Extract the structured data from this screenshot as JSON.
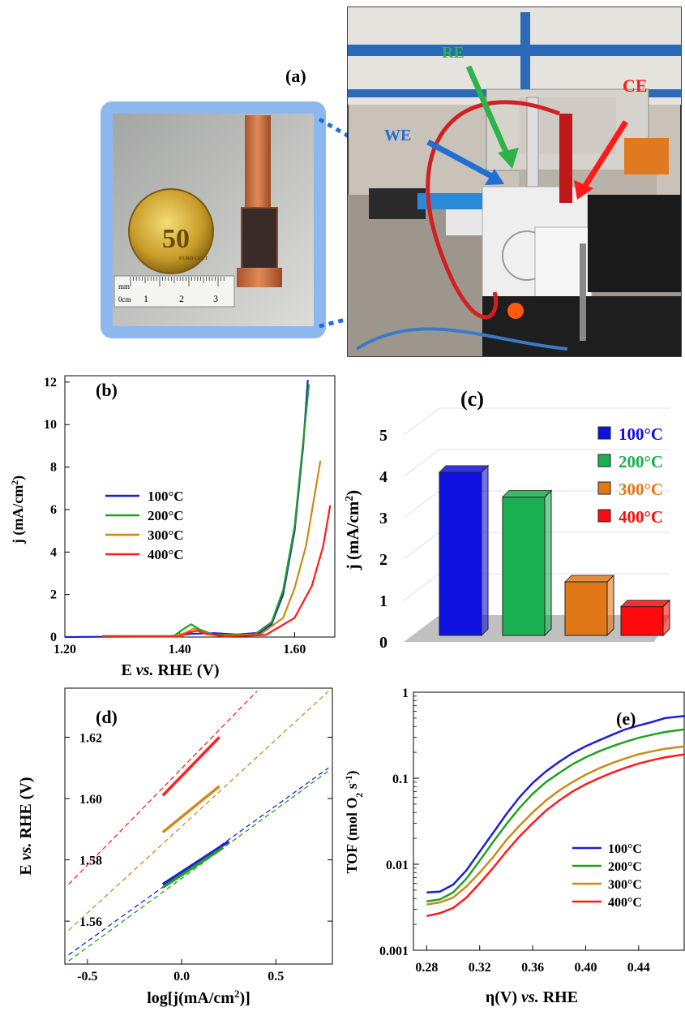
{
  "panel_a": {
    "label": "(a)",
    "ruler_labels": [
      "mm",
      "0cm",
      "1",
      "2",
      "3"
    ],
    "coin_text": "50",
    "coin_subtext": "EURO CENT",
    "arrows": [
      {
        "label": "RE",
        "color": "#2db34a"
      },
      {
        "label": "CE",
        "color": "#ff1a1a"
      },
      {
        "label": "WE",
        "color": "#1f6fd6"
      }
    ]
  },
  "chart_data": [
    {
      "panel": "(b)",
      "type": "line",
      "xlabel": "E vs. RHE (V)",
      "ylabel": "j (mA/cm2)",
      "xlim": [
        1.2,
        1.67
      ],
      "ylim": [
        0,
        12.3
      ],
      "xticks": [
        "1.20",
        "1.40",
        "1.60"
      ],
      "yticks": [
        "0",
        "2",
        "4",
        "6",
        "8",
        "10",
        "12"
      ],
      "legend_position": "middle-left",
      "series": [
        {
          "name": "100°C",
          "color": "#1f1fd6",
          "points": [
            [
              1.2,
              0
            ],
            [
              1.38,
              0.03
            ],
            [
              1.42,
              0.15
            ],
            [
              1.46,
              0.18
            ],
            [
              1.5,
              0.12
            ],
            [
              1.54,
              0.2
            ],
            [
              1.56,
              0.6
            ],
            [
              1.58,
              2.0
            ],
            [
              1.6,
              5.0
            ],
            [
              1.615,
              9.0
            ],
            [
              1.623,
              12.1
            ]
          ]
        },
        {
          "name": "200°C",
          "color": "#22a022",
          "points": [
            [
              1.265,
              0.05
            ],
            [
              1.39,
              0.05
            ],
            [
              1.405,
              0.35
            ],
            [
              1.42,
              0.6
            ],
            [
              1.435,
              0.35
            ],
            [
              1.46,
              0.1
            ],
            [
              1.53,
              0.12
            ],
            [
              1.56,
              0.7
            ],
            [
              1.58,
              2.2
            ],
            [
              1.6,
              5.2
            ],
            [
              1.615,
              9.2
            ],
            [
              1.625,
              11.9
            ]
          ]
        },
        {
          "name": "300°C",
          "color": "#cc8a14",
          "points": [
            [
              1.265,
              0.03
            ],
            [
              1.39,
              0.03
            ],
            [
              1.41,
              0.2
            ],
            [
              1.425,
              0.4
            ],
            [
              1.44,
              0.2
            ],
            [
              1.47,
              0.05
            ],
            [
              1.54,
              0.12
            ],
            [
              1.58,
              0.9
            ],
            [
              1.6,
              2.3
            ],
            [
              1.62,
              4.3
            ],
            [
              1.645,
              8.3
            ]
          ]
        },
        {
          "name": "400°C",
          "color": "#ff1a1a",
          "points": [
            [
              1.265,
              0.02
            ],
            [
              1.4,
              0.02
            ],
            [
              1.415,
              0.2
            ],
            [
              1.43,
              0.3
            ],
            [
              1.445,
              0.15
            ],
            [
              1.48,
              0.03
            ],
            [
              1.55,
              0.1
            ],
            [
              1.6,
              0.9
            ],
            [
              1.63,
              2.4
            ],
            [
              1.65,
              4.3
            ],
            [
              1.662,
              6.2
            ]
          ]
        }
      ]
    },
    {
      "panel": "(c)",
      "type": "bar",
      "ylabel": "j (mA/cm2)",
      "ylim": [
        0,
        5
      ],
      "yticks": [
        "0",
        "1",
        "2",
        "3",
        "4",
        "5"
      ],
      "categories": [
        "100°C",
        "200°C",
        "300°C",
        "400°C"
      ],
      "values": [
        4.1,
        3.5,
        1.45,
        0.85
      ],
      "colors": [
        "#1010e0",
        "#18b050",
        "#e07818",
        "#ff0a0a"
      ],
      "legend_position": "right"
    },
    {
      "panel": "(d)",
      "type": "line",
      "xlabel": "log[j(mA/cm2)]",
      "ylabel": "E vs. RHE (V)",
      "xlim": [
        -0.62,
        0.8
      ],
      "ylim": [
        1.546,
        1.636
      ],
      "xticks": [
        "-0.5",
        "0.0",
        "0.5"
      ],
      "yticks": [
        "1.56",
        "1.58",
        "1.60",
        "1.62"
      ],
      "series": [
        {
          "color": "#ff2020",
          "fit": [
            [
              -0.6,
              1.572
            ],
            [
              0.4,
              1.635
            ]
          ],
          "data": [
            [
              -0.1,
              1.601
            ],
            [
              0.2,
              1.62
            ]
          ]
        },
        {
          "color": "#d08a1c",
          "fit": [
            [
              -0.6,
              1.557
            ],
            [
              0.78,
              1.635
            ]
          ],
          "data": [
            [
              -0.1,
              1.589
            ],
            [
              0.2,
              1.604
            ]
          ]
        },
        {
          "color": "#1f1fd6",
          "fit": [
            [
              -0.6,
              1.549
            ],
            [
              0.78,
              1.61
            ]
          ],
          "data": [
            [
              -0.1,
              1.572
            ],
            [
              0.25,
              1.586
            ]
          ]
        },
        {
          "color": "#22a022",
          "fit": [
            [
              -0.6,
              1.547
            ],
            [
              0.78,
              1.609
            ]
          ],
          "data": [
            [
              -0.1,
              1.571
            ],
            [
              0.22,
              1.584
            ]
          ]
        }
      ]
    },
    {
      "panel": "(e)",
      "type": "line",
      "xlabel": "η(V) vs. RHE",
      "ylabel": "TOF (mol O2 s-1)",
      "yscale": "log",
      "xlim": [
        0.27,
        0.475
      ],
      "ylim": [
        0.001,
        1
      ],
      "xticks": [
        "0.28",
        "0.32",
        "0.36",
        "0.40",
        "0.44"
      ],
      "yticks": [
        "0.001",
        "0.01",
        "0.1",
        "1"
      ],
      "legend_position": "bottom-right",
      "series": [
        {
          "name": "100°C",
          "color": "#1f1fd6",
          "points": [
            [
              0.28,
              0.0047
            ],
            [
              0.29,
              0.0048
            ],
            [
              0.3,
              0.0058
            ],
            [
              0.31,
              0.0085
            ],
            [
              0.32,
              0.014
            ],
            [
              0.33,
              0.023
            ],
            [
              0.34,
              0.038
            ],
            [
              0.35,
              0.06
            ],
            [
              0.36,
              0.088
            ],
            [
              0.37,
              0.12
            ],
            [
              0.38,
              0.155
            ],
            [
              0.39,
              0.195
            ],
            [
              0.4,
              0.235
            ],
            [
              0.41,
              0.275
            ],
            [
              0.42,
              0.32
            ],
            [
              0.43,
              0.37
            ],
            [
              0.44,
              0.41
            ],
            [
              0.45,
              0.45
            ],
            [
              0.46,
              0.5
            ],
            [
              0.475,
              0.53
            ]
          ]
        },
        {
          "name": "200°C",
          "color": "#22a022",
          "points": [
            [
              0.28,
              0.0037
            ],
            [
              0.29,
              0.0039
            ],
            [
              0.3,
              0.0047
            ],
            [
              0.31,
              0.0068
            ],
            [
              0.32,
              0.011
            ],
            [
              0.33,
              0.018
            ],
            [
              0.34,
              0.029
            ],
            [
              0.35,
              0.045
            ],
            [
              0.36,
              0.066
            ],
            [
              0.37,
              0.09
            ],
            [
              0.38,
              0.115
            ],
            [
              0.39,
              0.145
            ],
            [
              0.4,
              0.175
            ],
            [
              0.41,
              0.205
            ],
            [
              0.42,
              0.235
            ],
            [
              0.43,
              0.265
            ],
            [
              0.44,
              0.295
            ],
            [
              0.45,
              0.32
            ],
            [
              0.46,
              0.345
            ],
            [
              0.475,
              0.37
            ]
          ]
        },
        {
          "name": "300°C",
          "color": "#cc8a14",
          "points": [
            [
              0.28,
              0.0034
            ],
            [
              0.29,
              0.0036
            ],
            [
              0.3,
              0.0041
            ],
            [
              0.31,
              0.0055
            ],
            [
              0.32,
              0.008
            ],
            [
              0.33,
              0.012
            ],
            [
              0.34,
              0.019
            ],
            [
              0.35,
              0.028
            ],
            [
              0.36,
              0.04
            ],
            [
              0.37,
              0.055
            ],
            [
              0.38,
              0.072
            ],
            [
              0.39,
              0.09
            ],
            [
              0.4,
              0.11
            ],
            [
              0.41,
              0.13
            ],
            [
              0.42,
              0.15
            ],
            [
              0.43,
              0.17
            ],
            [
              0.44,
              0.19
            ],
            [
              0.45,
              0.205
            ],
            [
              0.46,
              0.22
            ],
            [
              0.475,
              0.235
            ]
          ]
        },
        {
          "name": "400°C",
          "color": "#ff1a1a",
          "points": [
            [
              0.28,
              0.0025
            ],
            [
              0.29,
              0.0027
            ],
            [
              0.3,
              0.0031
            ],
            [
              0.31,
              0.0041
            ],
            [
              0.32,
              0.006
            ],
            [
              0.33,
              0.009
            ],
            [
              0.34,
              0.014
            ],
            [
              0.35,
              0.021
            ],
            [
              0.36,
              0.03
            ],
            [
              0.37,
              0.042
            ],
            [
              0.38,
              0.055
            ],
            [
              0.39,
              0.07
            ],
            [
              0.4,
              0.085
            ],
            [
              0.41,
              0.1
            ],
            [
              0.42,
              0.116
            ],
            [
              0.43,
              0.132
            ],
            [
              0.44,
              0.148
            ],
            [
              0.45,
              0.162
            ],
            [
              0.46,
              0.175
            ],
            [
              0.475,
              0.19
            ]
          ]
        }
      ]
    }
  ]
}
